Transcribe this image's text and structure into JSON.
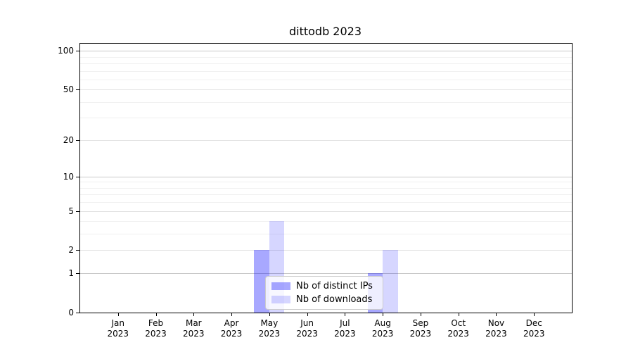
{
  "chart_data": {
    "type": "bar",
    "title": "dittodb 2023",
    "categories": [
      "Jan",
      "Feb",
      "Mar",
      "Apr",
      "May",
      "Jun",
      "Jul",
      "Aug",
      "Sep",
      "Oct",
      "Nov",
      "Dec"
    ],
    "year_label": "2023",
    "series": [
      {
        "name": "Nb of distinct IPs",
        "color": "rgba(0,0,255,0.34)",
        "values": [
          0,
          0,
          0,
          0,
          2,
          0,
          0,
          1,
          0,
          0,
          0,
          0
        ]
      },
      {
        "name": "Nb of downloads",
        "color": "rgba(0,0,255,0.16)",
        "values": [
          0,
          0,
          0,
          0,
          4,
          0,
          0,
          2,
          0,
          0,
          0,
          0
        ]
      }
    ],
    "xlabel": "",
    "ylabel": "",
    "y_scale": "log1p",
    "ylim": [
      0,
      113
    ],
    "y_tick_labels": [
      0,
      1,
      2,
      5,
      10,
      20,
      50,
      100
    ],
    "y_minor_gridlines": [
      3,
      4,
      6,
      7,
      8,
      9,
      30,
      40,
      60,
      70,
      80,
      90
    ],
    "grid": "horizontal",
    "legend_position": "inside lower center",
    "colors": {
      "decade_gridline": "#c9c9c9",
      "major_gridline": "#e2e2e2",
      "minor_gridline": "#f0f0f0",
      "axis": "#000000",
      "legend_border": "#cccccc"
    }
  }
}
